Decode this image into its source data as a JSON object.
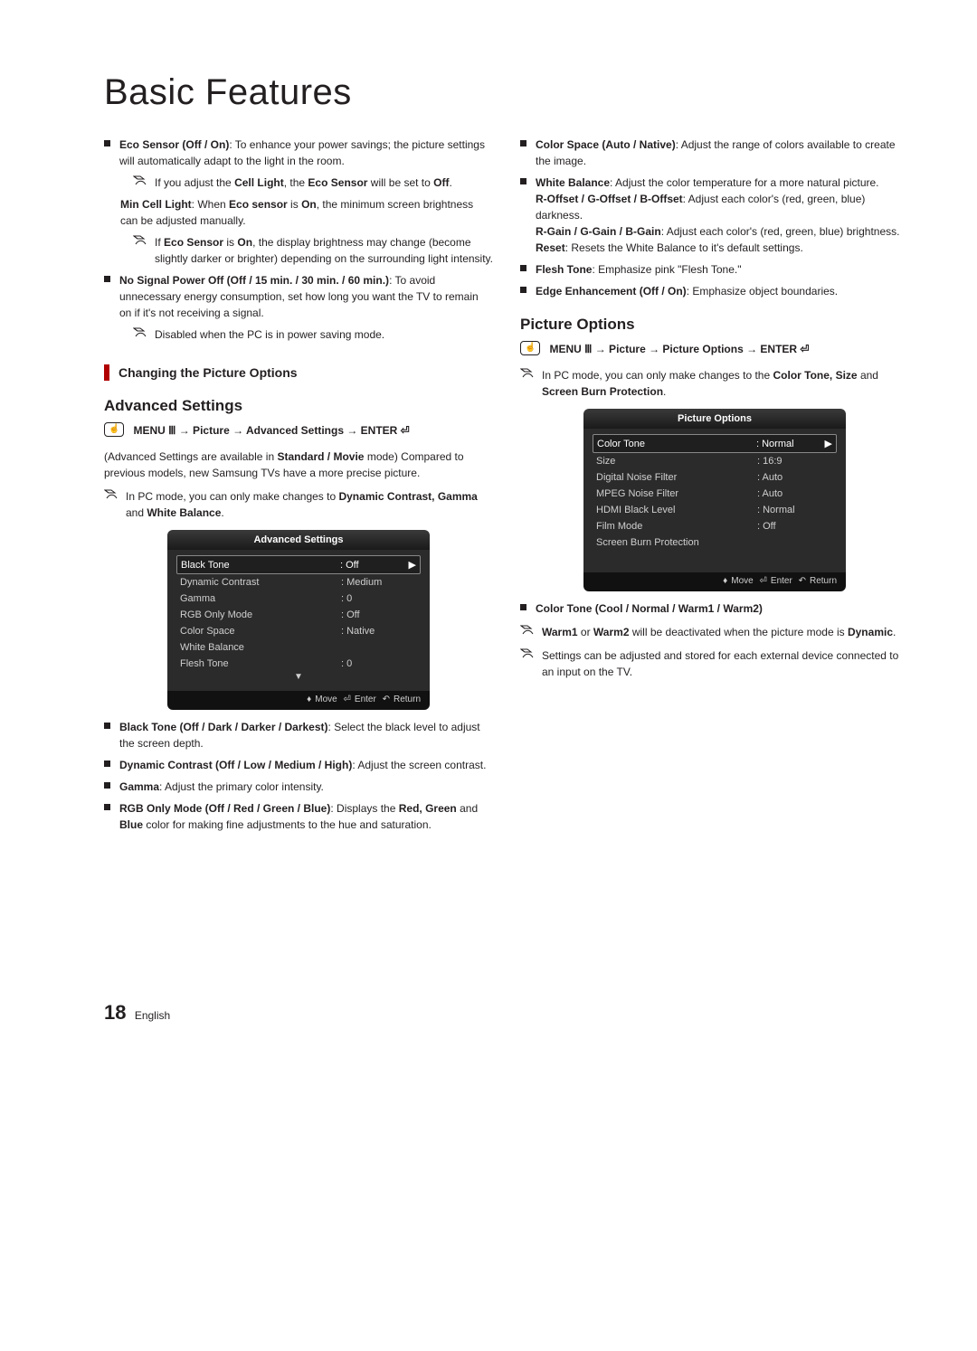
{
  "page_title": "Basic Features",
  "page_number": "18",
  "page_lang": "English",
  "col_left": {
    "eco_sensor": {
      "title": "Eco Sensor (Off / On)",
      "desc": ": To enhance your power savings; the picture settings will automatically adapt to the light in the room.",
      "note1_pre": "If you adjust the ",
      "note1_b1": "Cell Light",
      "note1_mid": ", the ",
      "note1_b2": "Eco Sensor",
      "note1_post": " will be set to ",
      "note1_b3": "Off",
      "note1_dot": "."
    },
    "min_cell": {
      "title": "Min Cell Light",
      "mid1": ": When ",
      "b1": "Eco sensor",
      "mid2": " is ",
      "b2": "On",
      "post": ", the minimum screen brightness can be adjusted manually.",
      "note_pre": "If ",
      "note_b1": "Eco Sensor",
      "note_mid": " is ",
      "note_b2": "On",
      "note_post": ", the display brightness may change (become slightly darker or brighter) depending on the surrounding light intensity."
    },
    "no_signal": {
      "title": "No Signal Power Off (Off / 15 min. / 30 min. / 60 min.)",
      "desc": ": To avoid unnecessary energy consumption, set how long you want the TV to remain on if it's not receiving a signal.",
      "note": "Disabled when the PC is in power saving mode."
    },
    "section_change": "Changing the Picture Options",
    "adv_heading": "Advanced Settings",
    "menu_path_adv": "MENU Ⅲ → Picture → Advanced Settings → ENTER ⏎",
    "adv_intro_pre": "(Advanced Settings are available in ",
    "adv_intro_b": "Standard / Movie",
    "adv_intro_post": " mode) Compared to previous models, new Samsung TVs have a more precise picture.",
    "adv_pc_note_pre": "In PC mode, you can only make changes to ",
    "adv_pc_note_b1": "Dynamic Contrast, Gamma",
    "adv_pc_note_mid": " and ",
    "adv_pc_note_b2": "White Balance",
    "adv_pc_note_dot": ".",
    "osd_adv": {
      "title": "Advanced Settings",
      "rows": [
        {
          "label": "Black Tone",
          "val": ": Off",
          "sel": true
        },
        {
          "label": "Dynamic Contrast",
          "val": ": Medium"
        },
        {
          "label": "Gamma",
          "val": ": 0"
        },
        {
          "label": "RGB Only Mode",
          "val": ": Off"
        },
        {
          "label": "Color Space",
          "val": ": Native"
        },
        {
          "label": "White Balance",
          "val": ""
        },
        {
          "label": "Flesh Tone",
          "val": ": 0"
        }
      ],
      "footer_move": "Move",
      "footer_enter": "Enter",
      "footer_return": "Return"
    },
    "black_tone": {
      "b": "Black Tone (Off / Dark / Darker / Darkest)",
      "d": ": Select the black level to adjust the screen depth."
    },
    "dyn_contrast": {
      "b": "Dynamic Contrast (Off / Low / Medium / High)",
      "d": ": Adjust the screen contrast."
    },
    "gamma": {
      "b": "Gamma",
      "d": ": Adjust the primary color intensity."
    },
    "rgb_only": {
      "b": "RGB Only Mode (Off / Red / Green / Blue)",
      "pre": ": Displays the ",
      "b2": "Red, Green",
      "mid": " and ",
      "b3": "Blue",
      "post": " color for making fine adjustments to the hue and saturation."
    }
  },
  "col_right": {
    "color_space": {
      "b": "Color Space (Auto / Native)",
      "d": ": Adjust the range of colors available to create the image."
    },
    "white_balance": {
      "b": "White Balance",
      "d": ": Adjust the color temperature for a more natural picture.",
      "l1b": "R-Offset / G-Offset / B-Offset",
      "l1d": ": Adjust each color's (red, green, blue) darkness.",
      "l2b": "R-Gain / G-Gain / B-Gain",
      "l2d": ": Adjust each color's (red, green, blue) brightness.",
      "l3b": "Reset",
      "l3d": ": Resets the White Balance to it's default settings."
    },
    "flesh_tone": {
      "b": "Flesh Tone",
      "d": ": Emphasize pink \"Flesh Tone.\""
    },
    "edge": {
      "b": "Edge Enhancement (Off / On)",
      "d": ": Emphasize object boundaries."
    },
    "po_heading": "Picture Options",
    "menu_path_po": "MENU Ⅲ → Picture → Picture Options → ENTER ⏎",
    "po_pc_note_pre": "In PC mode, you can only make changes to the ",
    "po_pc_note_b1": "Color Tone, Size",
    "po_pc_note_mid": " and ",
    "po_pc_note_b2": "Screen Burn Protection",
    "po_pc_note_dot": ".",
    "osd_po": {
      "title": "Picture Options",
      "rows": [
        {
          "label": "Color Tone",
          "val": ": Normal",
          "sel": true
        },
        {
          "label": "Size",
          "val": ": 16:9"
        },
        {
          "label": "Digital Noise Filter",
          "val": ": Auto"
        },
        {
          "label": "MPEG Noise Filter",
          "val": ": Auto"
        },
        {
          "label": "HDMI Black Level",
          "val": ": Normal"
        },
        {
          "label": "Film Mode",
          "val": ": Off"
        },
        {
          "label": "Screen Burn Protection",
          "val": ""
        }
      ],
      "footer_move": "Move",
      "footer_enter": "Enter",
      "footer_return": "Return"
    },
    "color_tone_b": "Color Tone (Cool / Normal / Warm1 / Warm2)",
    "warm_note_b1": "Warm1",
    "warm_note_mid": " or ",
    "warm_note_b2": "Warm2",
    "warm_note_post": " will be deactivated when the picture mode is ",
    "warm_note_b3": "Dynamic",
    "warm_note_dot": ".",
    "store_note": "Settings can be adjusted and stored for each external device connected to an input on the TV."
  },
  "icons": {
    "note_svg_path": "M2 3h8l4 4h-8z M2 3l4 4h8 M4 11c2-4 8-4 10 0",
    "hand_text": "☝"
  },
  "style": {
    "accent": "#b00000",
    "osd_bg": "#2b2b2b"
  }
}
